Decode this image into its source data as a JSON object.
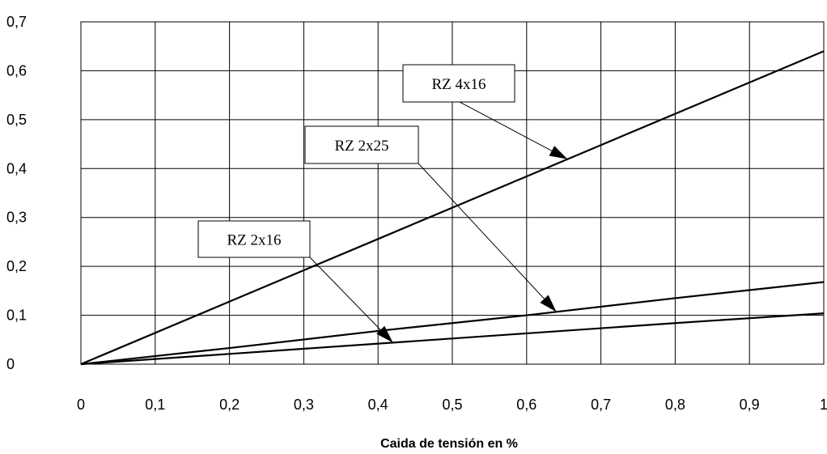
{
  "chart_data": {
    "type": "line",
    "title": "",
    "xlabel": "Caida de tensión en %",
    "ylabel": "",
    "xlim": [
      0,
      1
    ],
    "ylim": [
      0,
      0.7
    ],
    "x_ticks": [
      0,
      0.1,
      0.2,
      0.3,
      0.4,
      0.5,
      0.6,
      0.7,
      0.8,
      0.9,
      1
    ],
    "x_tick_labels": [
      "0",
      "0,1",
      "0,2",
      "0,3",
      "0,4",
      "0,5",
      "0,6",
      "0,7",
      "0,8",
      "0,9",
      "1"
    ],
    "y_ticks": [
      0,
      0.1,
      0.2,
      0.3,
      0.4,
      0.5,
      0.6,
      0.7
    ],
    "y_tick_labels": [
      "0",
      "0,1",
      "0,2",
      "0,3",
      "0,4",
      "0,5",
      "0,6",
      "0,7"
    ],
    "grid": true,
    "legend": "callouts",
    "series": [
      {
        "name": "RZ 4x16",
        "x": [
          0,
          0.2,
          0.4,
          0.6,
          0.8,
          1
        ],
        "y": [
          0,
          0.128,
          0.256,
          0.384,
          0.512,
          0.64
        ],
        "callout_at_x": 0.655
      },
      {
        "name": "RZ 2x25",
        "x": [
          0,
          0.2,
          0.4,
          0.6,
          0.8,
          1
        ],
        "y": [
          0,
          0.033,
          0.068,
          0.1,
          0.135,
          0.168
        ],
        "callout_at_x": 0.64
      },
      {
        "name": "RZ 2x16",
        "x": [
          0,
          0.2,
          0.4,
          0.6,
          0.8,
          1
        ],
        "y": [
          0,
          0.021,
          0.042,
          0.063,
          0.084,
          0.104
        ],
        "callout_at_x": 0.42
      }
    ]
  }
}
